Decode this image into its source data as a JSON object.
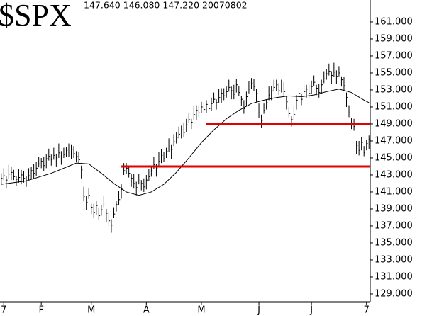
{
  "chart_data": {
    "type": "ohlc",
    "title": "$SPX",
    "subtitle": "147.640 146.080 147.220 20070802",
    "color": "#000000",
    "xlim": [
      -0.5,
      147.5
    ],
    "ylim": [
      128.08,
      163.58
    ],
    "xticks": [
      {
        "value": 1,
        "label": "7"
      },
      {
        "value": 16,
        "label": "F"
      },
      {
        "value": 36,
        "label": "M"
      },
      {
        "value": 58,
        "label": "A"
      },
      {
        "value": 80,
        "label": "M"
      },
      {
        "value": 103,
        "label": "J"
      },
      {
        "value": 124,
        "label": "J"
      },
      {
        "value": 146,
        "label": "7"
      }
    ],
    "yticks": [
      {
        "value": 129,
        "label": "129.000"
      },
      {
        "value": 131,
        "label": "131.000"
      },
      {
        "value": 133,
        "label": "133.000"
      },
      {
        "value": 135,
        "label": "135.000"
      },
      {
        "value": 137,
        "label": "137.000"
      },
      {
        "value": 139,
        "label": "139.000"
      },
      {
        "value": 141,
        "label": "141.000"
      },
      {
        "value": 143,
        "label": "143.000"
      },
      {
        "value": 145,
        "label": "145.000"
      },
      {
        "value": 147,
        "label": "147.000"
      },
      {
        "value": 149,
        "label": "149.000"
      },
      {
        "value": 151,
        "label": "151.000"
      },
      {
        "value": 153,
        "label": "153.000"
      },
      {
        "value": 155,
        "label": "155.000"
      },
      {
        "value": 157,
        "label": "157.000"
      },
      {
        "value": 159,
        "label": "159.000"
      },
      {
        "value": 161,
        "label": "161.000"
      }
    ],
    "high": [
      143.2,
      143.8,
      142.9,
      144.2,
      144.0,
      143.6,
      142.9,
      143.7,
      143.6,
      143.5,
      142.9,
      143.8,
      144.0,
      144.3,
      144.5,
      145.1,
      145.0,
      145.1,
      145.5,
      146.1,
      145.4,
      146.2,
      145.5,
      146.7,
      145.8,
      146.2,
      146.3,
      146.7,
      146.6,
      146.4,
      145.8,
      145.7,
      144.1,
      141.6,
      140.5,
      141.4,
      139.6,
      139.6,
      140.0,
      139.1,
      139.5,
      140.6,
      139.0,
      138.7,
      137.8,
      139.2,
      139.9,
      141.1,
      141.9,
      144.4,
      144.4,
      144.1,
      143.1,
      143.1,
      142.2,
      143.1,
      142.4,
      142.6,
      143.0,
      143.7,
      144.1,
      145.1,
      144.3,
      145.7,
      146.0,
      145.7,
      146.2,
      147.3,
      146.6,
      147.8,
      148.0,
      148.7,
      148.8,
      149.1,
      149.6,
      150.3,
      149.6,
      151.1,
      151.2,
      151.2,
      151.6,
      151.6,
      151.8,
      151.9,
      152.1,
      152.7,
      151.9,
      153.1,
      153.2,
      153.2,
      153.4,
      154.2,
      153.4,
      153.6,
      154.3,
      153.5,
      152.3,
      151.8,
      152.8,
      154.0,
      154.4,
      154.3,
      153.1,
      151.4,
      150.1,
      151.4,
      151.9,
      153.4,
      153.5,
      154.2,
      154.2,
      153.8,
      154.2,
      153.9,
      152.3,
      151.0,
      149.9,
      151.1,
      152.4,
      153.5,
      152.5,
      153.7,
      153.6,
      153.7,
      154.1,
      154.7,
      153.6,
      153.7,
      154.2,
      155.2,
      155.5,
      156.1,
      155.2,
      156.2,
      155.3,
      155.8,
      154.6,
      154.5,
      152.7,
      151.2,
      149.7,
      149.6,
      147.0,
      147.0,
      147.5,
      146.4,
      147.1,
      147.64
    ],
    "low": [
      141.9,
      142.4,
      141.4,
      142.5,
      142.4,
      142.4,
      141.7,
      142.1,
      141.9,
      142.1,
      141.6,
      142.4,
      142.5,
      142.6,
      142.9,
      143.9,
      143.8,
      143.5,
      143.8,
      144.7,
      144.1,
      144.8,
      144.0,
      145.0,
      144.2,
      145.0,
      145.1,
      145.1,
      144.9,
      145.0,
      144.5,
      144.3,
      142.6,
      139.9,
      138.9,
      140.2,
      138.4,
      138.0,
      138.3,
      137.7,
      138.2,
      139.2,
      137.5,
      137.0,
      136.2,
      138.0,
      138.7,
      139.5,
      140.2,
      143.0,
      143.1,
      142.7,
      141.6,
      141.4,
      140.6,
      141.9,
      141.2,
      141.0,
      141.3,
      142.3,
      142.8,
      143.7,
      142.8,
      144.0,
      144.4,
      144.5,
      145.0,
      145.7,
      144.9,
      146.4,
      146.7,
      147.3,
      147.3,
      147.4,
      148.0,
      149.1,
      148.4,
      149.5,
      149.5,
      149.8,
      150.3,
      150.2,
      150.3,
      150.2,
      150.5,
      151.5,
      150.7,
      151.5,
      151.5,
      151.8,
      152.1,
      152.8,
      151.9,
      151.9,
      152.7,
      152.3,
      151.1,
      150.2,
      151.1,
      152.6,
      153.1,
      152.9,
      151.6,
      149.7,
      148.5,
      150.2,
      150.7,
      151.8,
      151.8,
      152.8,
      152.9,
      152.4,
      152.7,
      152.2,
      150.7,
      149.8,
      148.7,
      149.5,
      150.7,
      152.1,
      151.2,
      152.3,
      152.1,
      152.0,
      152.5,
      153.5,
      152.4,
      152.1,
      152.5,
      153.8,
      154.2,
      154.7,
      153.7,
      154.5,
      153.7,
      154.6,
      153.4,
      152.9,
      151.0,
      149.8,
      148.4,
      148.2,
      145.5,
      145.3,
      145.9,
      145.2,
      145.9,
      146.08
    ],
    "close": [
      142.6,
      142.9,
      142.4,
      143.1,
      143.3,
      142.8,
      142.5,
      142.7,
      143.0,
      142.6,
      142.3,
      142.9,
      143.5,
      143.2,
      143.8,
      144.3,
      144.6,
      144.1,
      144.9,
      145.2,
      144.8,
      145.3,
      145.0,
      145.6,
      145.1,
      145.4,
      145.9,
      145.7,
      146.0,
      145.5,
      145.2,
      144.8,
      143.6,
      140.5,
      139.8,
      140.6,
      139.2,
      138.6,
      139.4,
      138.2,
      138.9,
      139.7,
      138.5,
      137.6,
      137.1,
      138.4,
      139.5,
      140.1,
      141.3,
      143.5,
      143.8,
      143.2,
      142.6,
      142.0,
      141.5,
      142.3,
      142.0,
      141.6,
      142.4,
      142.8,
      143.5,
      144.2,
      143.8,
      144.6,
      145.3,
      144.9,
      145.8,
      146.3,
      146.0,
      146.9,
      147.4,
      147.8,
      148.3,
      148.0,
      148.9,
      149.5,
      149.2,
      150.1,
      150.6,
      150.3,
      151.0,
      150.7,
      151.3,
      150.8,
      151.4,
      151.9,
      151.5,
      152.1,
      152.6,
      152.3,
      152.8,
      153.3,
      152.9,
      152.5,
      153.6,
      152.7,
      151.9,
      150.8,
      152.2,
      153.1,
      153.8,
      153.4,
      152.6,
      150.3,
      149.4,
      150.6,
      151.5,
      152.4,
      152.9,
      153.3,
      153.6,
      152.9,
      153.7,
      152.8,
      151.6,
      150.2,
      149.5,
      150.1,
      151.8,
      152.6,
      151.9,
      152.8,
      153.1,
      152.6,
      153.4,
      153.9,
      153.2,
      152.7,
      153.6,
      154.3,
      154.9,
      155.2,
      154.7,
      155.1,
      154.6,
      155.0,
      154.2,
      153.5,
      152.1,
      150.3,
      149.1,
      148.7,
      146.5,
      145.9,
      146.8,
      145.6,
      146.7,
      147.22
    ],
    "ma": {
      "color": "#000000",
      "x": [
        0,
        10,
        20,
        30,
        35,
        40,
        45,
        50,
        55,
        60,
        65,
        70,
        75,
        80,
        85,
        90,
        95,
        100,
        105,
        110,
        115,
        120,
        125,
        130,
        135,
        140,
        145,
        147
      ],
      "values": [
        141.9,
        142.3,
        143.2,
        144.4,
        144.3,
        143.2,
        142.0,
        141.0,
        140.6,
        141.0,
        141.9,
        143.3,
        145.0,
        146.8,
        148.3,
        149.6,
        150.6,
        151.4,
        151.8,
        152.1,
        152.3,
        152.2,
        152.4,
        152.8,
        153.1,
        152.7,
        151.8,
        151.5
      ]
    },
    "levels": [
      {
        "value": 149,
        "from": 82,
        "color": "#e00000"
      },
      {
        "value": 144,
        "from": 48,
        "color": "#e00000"
      }
    ]
  }
}
